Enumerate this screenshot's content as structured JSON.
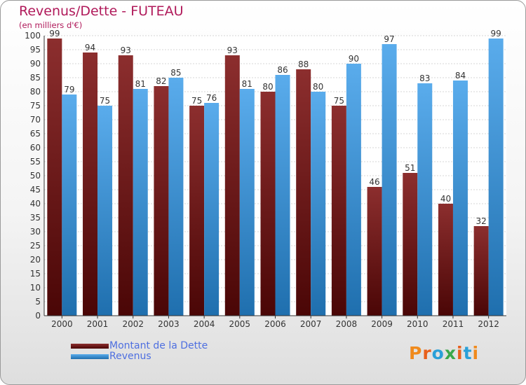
{
  "title": "Revenus/Dette - FUTEAU",
  "subtitle": "(en milliers d'€)",
  "colors": {
    "dette": "#6e1a1a",
    "revenus": "#3d8fd6",
    "title": "#b0195a",
    "legend_text": "#4e6fe0"
  },
  "legend": [
    {
      "label": "Montant de la Dette",
      "color": "#6e1a1a"
    },
    {
      "label": "Revenus",
      "color": "#3d8fd6"
    }
  ],
  "logo": {
    "text": "Proxiti",
    "colors": [
      "#f08a1c",
      "#e8601c",
      "#2aa0d8",
      "#3aa84a",
      "#e8601c",
      "#2aa0d8",
      "#f08a1c"
    ]
  },
  "chart_data": {
    "type": "bar",
    "categories": [
      "2000",
      "2001",
      "2002",
      "2003",
      "2004",
      "2005",
      "2006",
      "2007",
      "2008",
      "2009",
      "2010",
      "2011",
      "2012"
    ],
    "series": [
      {
        "name": "Montant de la Dette",
        "values": [
          99,
          94,
          93,
          82,
          75,
          93,
          80,
          88,
          75,
          46,
          51,
          40,
          32
        ]
      },
      {
        "name": "Revenus",
        "values": [
          79,
          75,
          81,
          85,
          76,
          81,
          86,
          80,
          90,
          97,
          83,
          84,
          99
        ]
      }
    ],
    "ylim": [
      0,
      100
    ],
    "ytick_step": 5,
    "grid": true,
    "legend_position": "bottom-left"
  }
}
